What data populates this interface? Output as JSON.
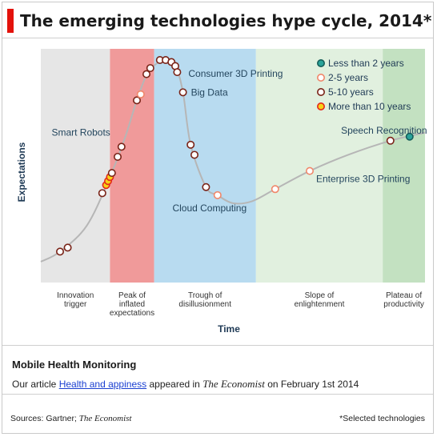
{
  "title": "The emerging technologies hype cycle, 2014*",
  "chart_data": {
    "type": "scatter",
    "ylabel": "Expectations",
    "xlabel": "Time",
    "phases": [
      {
        "name": "Innovation trigger",
        "lines": [
          "Innovation",
          "trigger"
        ],
        "color": "#e6e6e6"
      },
      {
        "name": "Peak of inflated expectations",
        "lines": [
          "Peak of",
          "inflated",
          "expectations"
        ],
        "color": "#f09a9a"
      },
      {
        "name": "Trough of disillusionment",
        "lines": [
          "Trough of",
          "disillusionment"
        ],
        "color": "#b8dbf0"
      },
      {
        "name": "Slope of enlightenment",
        "lines": [
          "Slope of",
          "enlightenment"
        ],
        "color": "#e1f0df"
      },
      {
        "name": "Plateau of productivity",
        "lines": [
          "Plateau of",
          "productivity"
        ],
        "color": "#c3e1c1"
      }
    ],
    "legend": {
      "placement": "top-right",
      "items": [
        {
          "label": "Less than 2 years",
          "fill": "#2aa39a",
          "stroke": "#155f5a"
        },
        {
          "label": "2-5 years",
          "fill": "#ffffff",
          "stroke": "#f0876a"
        },
        {
          "label": "5-10 years",
          "fill": "#ffffff",
          "stroke": "#7a2418"
        },
        {
          "label": "More than 10 years",
          "fill": "#f7d117",
          "stroke": "#e4271b"
        }
      ]
    },
    "technologies": [
      {
        "x": 0.05,
        "y": 0.05,
        "cat": 2
      },
      {
        "x": 0.07,
        "y": 0.07,
        "cat": 2
      },
      {
        "x": 0.16,
        "y": 0.34,
        "cat": 2
      },
      {
        "x": 0.17,
        "y": 0.38,
        "cat": 3
      },
      {
        "x": 0.175,
        "y": 0.4,
        "cat": 3
      },
      {
        "x": 0.18,
        "y": 0.42,
        "cat": 3
      },
      {
        "x": 0.185,
        "y": 0.44,
        "cat": 2
      },
      {
        "x": 0.2,
        "y": 0.52,
        "cat": 2
      },
      {
        "x": 0.21,
        "y": 0.57,
        "cat": 2,
        "label": "Smart Robots"
      },
      {
        "x": 0.25,
        "y": 0.8,
        "cat": 2
      },
      {
        "x": 0.26,
        "y": 0.83,
        "cat": 1
      },
      {
        "x": 0.275,
        "y": 0.93,
        "cat": 2
      },
      {
        "x": 0.285,
        "y": 0.96,
        "cat": 2
      },
      {
        "x": 0.31,
        "y": 1.0,
        "cat": 2
      },
      {
        "x": 0.325,
        "y": 1.0,
        "cat": 2
      },
      {
        "x": 0.34,
        "y": 0.99,
        "cat": 2
      },
      {
        "x": 0.35,
        "y": 0.97,
        "cat": 2
      },
      {
        "x": 0.355,
        "y": 0.94,
        "cat": 2,
        "label": "Consumer 3D Printing"
      },
      {
        "x": 0.37,
        "y": 0.84,
        "cat": 2,
        "label": "Big Data"
      },
      {
        "x": 0.39,
        "y": 0.58,
        "cat": 2
      },
      {
        "x": 0.4,
        "y": 0.53,
        "cat": 2
      },
      {
        "x": 0.43,
        "y": 0.37,
        "cat": 2
      },
      {
        "x": 0.46,
        "y": 0.33,
        "cat": 1,
        "label": "Cloud Computing"
      },
      {
        "x": 0.61,
        "y": 0.36,
        "cat": 1
      },
      {
        "x": 0.7,
        "y": 0.45,
        "cat": 1,
        "label": "Enterprise 3D Printing"
      },
      {
        "x": 0.91,
        "y": 0.6,
        "cat": 2
      },
      {
        "x": 0.96,
        "y": 0.62,
        "cat": 0,
        "label": "Speech Recognition"
      }
    ],
    "footnote": "*Selected technologies"
  },
  "info": {
    "heading": "Mobile Health Monitoring",
    "prefix": "Our article",
    "link": "Health and appiness",
    "middle": "appeared in",
    "publication": "The Economist",
    "suffix": "on February 1st 2014"
  },
  "footer": {
    "sources_label": "Sources: Gartner;",
    "sources_pub": "The Economist"
  }
}
